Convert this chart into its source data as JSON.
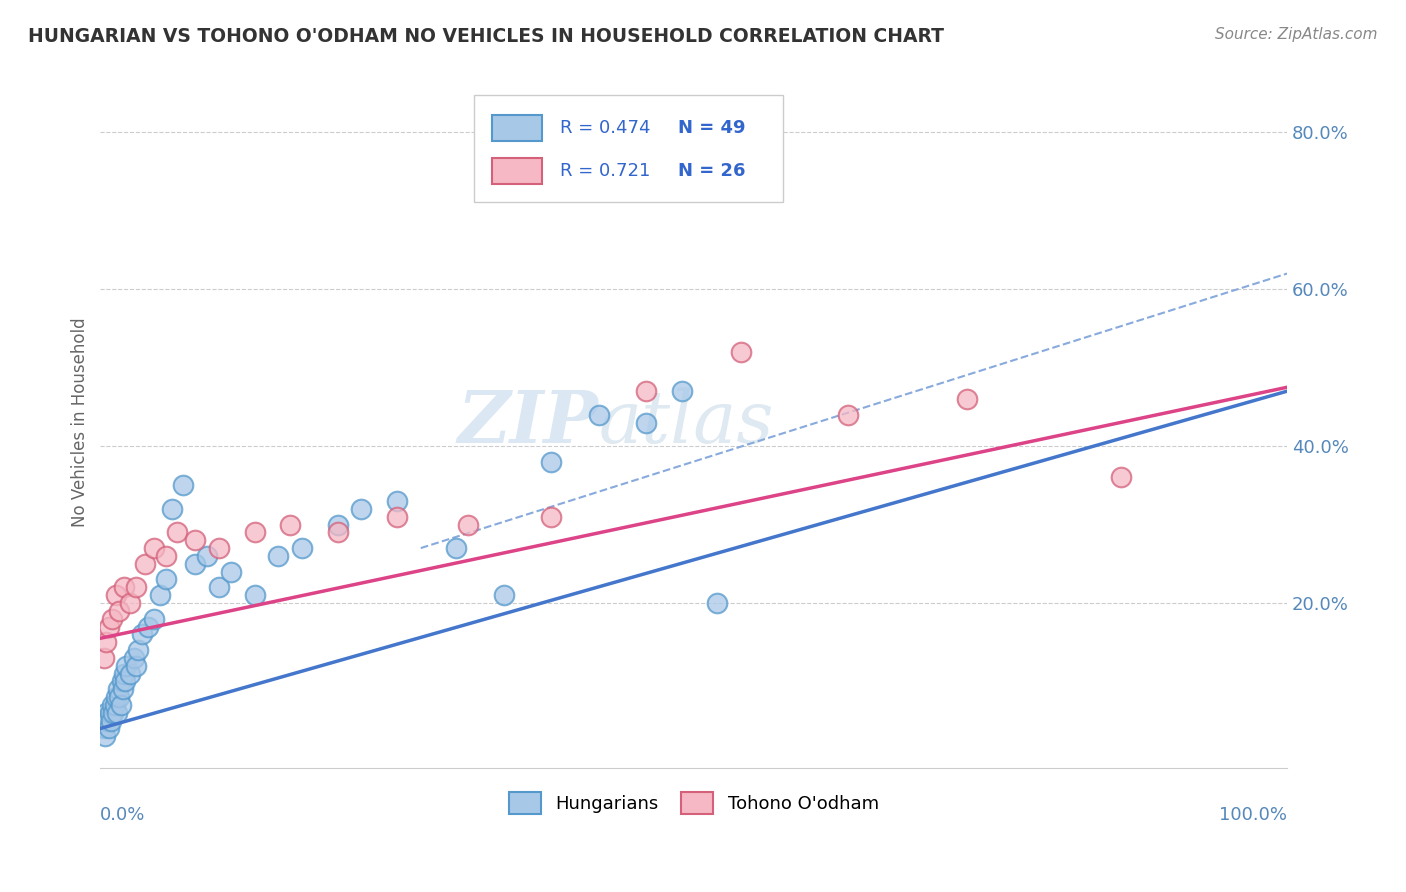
{
  "title": "HUNGARIAN VS TOHONO O'ODHAM NO VEHICLES IN HOUSEHOLD CORRELATION CHART",
  "source": "Source: ZipAtlas.com",
  "ylabel": "No Vehicles in Household",
  "xlim": [
    0,
    1.0
  ],
  "ylim": [
    -0.01,
    0.87
  ],
  "ytick_vals": [
    0.0,
    0.2,
    0.4,
    0.6,
    0.8
  ],
  "ytick_labels": [
    "",
    "20.0%",
    "40.0%",
    "60.0%",
    "80.0%"
  ],
  "color_blue": "#a8c8e8",
  "color_blue_edge": "#5599cc",
  "color_pink": "#f5b8c4",
  "color_pink_edge": "#d4607a",
  "color_blue_line": "#4477cc",
  "color_pink_line": "#dd4488",
  "color_dashed": "#88aadd",
  "watermark_zip": "ZIP",
  "watermark_atlas": "atlas",
  "legend_r1": "R = 0.474",
  "legend_n1": "N = 49",
  "legend_r2": "R = 0.721",
  "legend_n2": "N = 26",
  "legend_label1": "Hungarians",
  "legend_label2": "Tohono O'odham",
  "hungarian_x": [
    0.002,
    0.003,
    0.004,
    0.005,
    0.006,
    0.007,
    0.008,
    0.009,
    0.01,
    0.011,
    0.012,
    0.013,
    0.014,
    0.015,
    0.016,
    0.017,
    0.018,
    0.019,
    0.02,
    0.021,
    0.022,
    0.025,
    0.028,
    0.03,
    0.032,
    0.035,
    0.04,
    0.045,
    0.05,
    0.055,
    0.06,
    0.07,
    0.08,
    0.09,
    0.1,
    0.11,
    0.13,
    0.15,
    0.17,
    0.2,
    0.22,
    0.25,
    0.3,
    0.34,
    0.38,
    0.42,
    0.46,
    0.49,
    0.52
  ],
  "hungarian_y": [
    0.05,
    0.04,
    0.03,
    0.06,
    0.05,
    0.04,
    0.06,
    0.05,
    0.07,
    0.06,
    0.07,
    0.08,
    0.06,
    0.09,
    0.08,
    0.07,
    0.1,
    0.09,
    0.11,
    0.1,
    0.12,
    0.11,
    0.13,
    0.12,
    0.14,
    0.16,
    0.17,
    0.18,
    0.21,
    0.23,
    0.32,
    0.35,
    0.25,
    0.26,
    0.22,
    0.24,
    0.21,
    0.26,
    0.27,
    0.3,
    0.32,
    0.33,
    0.27,
    0.21,
    0.38,
    0.44,
    0.43,
    0.47,
    0.2
  ],
  "tohono_x": [
    0.003,
    0.005,
    0.007,
    0.01,
    0.013,
    0.016,
    0.02,
    0.025,
    0.03,
    0.038,
    0.045,
    0.055,
    0.065,
    0.08,
    0.1,
    0.13,
    0.16,
    0.2,
    0.25,
    0.31,
    0.38,
    0.46,
    0.54,
    0.63,
    0.73,
    0.86
  ],
  "tohono_y": [
    0.13,
    0.15,
    0.17,
    0.18,
    0.21,
    0.19,
    0.22,
    0.2,
    0.22,
    0.25,
    0.27,
    0.26,
    0.29,
    0.28,
    0.27,
    0.29,
    0.3,
    0.29,
    0.31,
    0.3,
    0.31,
    0.47,
    0.52,
    0.44,
    0.46,
    0.36
  ],
  "blue_line_x0": 0.0,
  "blue_line_y0": 0.04,
  "blue_line_x1": 1.0,
  "blue_line_y1": 0.47,
  "pink_line_x0": 0.0,
  "pink_line_y0": 0.155,
  "pink_line_x1": 1.0,
  "pink_line_y1": 0.475,
  "dash_line_x0": 0.27,
  "dash_line_y0": 0.27,
  "dash_line_x1": 1.0,
  "dash_line_y1": 0.62
}
